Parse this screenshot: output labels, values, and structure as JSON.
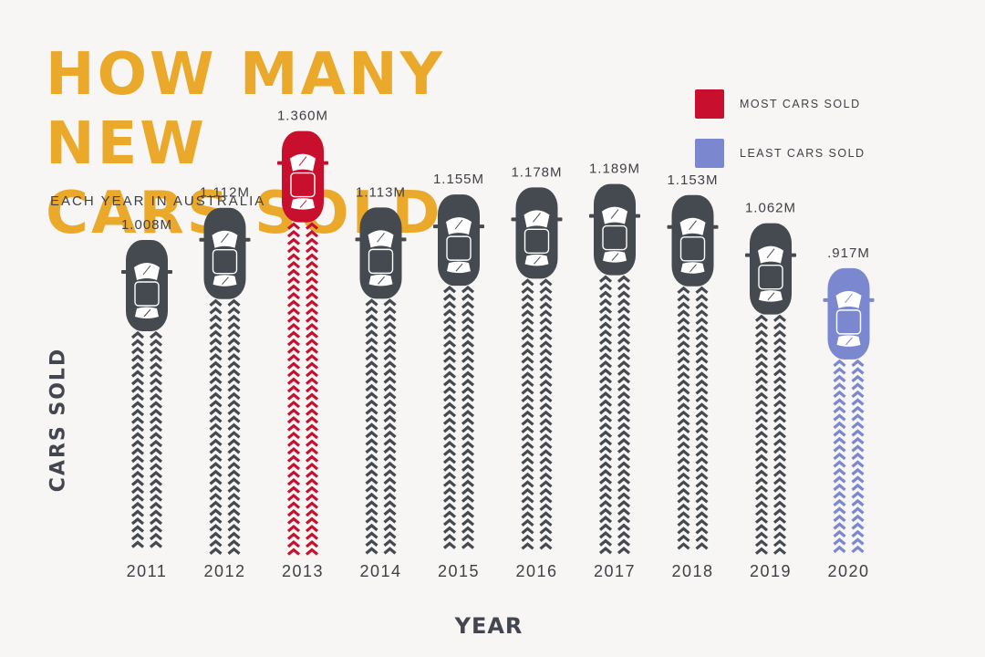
{
  "title_line1": "HOW MANY NEW",
  "title_line2": "CARS SOLD",
  "subtitle": "EACH YEAR IN AUSTRALIA",
  "legend": [
    {
      "label": "MOST CARS SOLD",
      "color": "#c8102e"
    },
    {
      "label": "LEAST CARS SOLD",
      "color": "#7b88d0"
    }
  ],
  "colors": {
    "default": "#454950",
    "most": "#c8102e",
    "least": "#7b88d0",
    "title": "#eaa92b"
  },
  "chart_data": {
    "type": "bar",
    "title": "HOW MANY NEW CARS SOLD",
    "subtitle": "EACH YEAR IN AUSTRALIA",
    "xlabel": "YEAR",
    "ylabel": "CARS SOLD",
    "unit": "M",
    "categories": [
      "2011",
      "2012",
      "2013",
      "2014",
      "2015",
      "2016",
      "2017",
      "2018",
      "2019",
      "2020"
    ],
    "values": [
      1.008,
      1.112,
      1.36,
      1.113,
      1.155,
      1.178,
      1.189,
      1.153,
      1.062,
      0.917
    ],
    "value_labels": [
      "1.008M",
      "1.112M",
      "1.360M",
      "1.113M",
      "1.155M",
      "1.178M",
      "1.189M",
      "1.153M",
      "1.062M",
      ".917M"
    ],
    "highlight": {
      "max": "2013",
      "min": "2020"
    },
    "ylim": [
      0,
      1.4
    ],
    "grid": false,
    "legend_position": "top-right"
  }
}
